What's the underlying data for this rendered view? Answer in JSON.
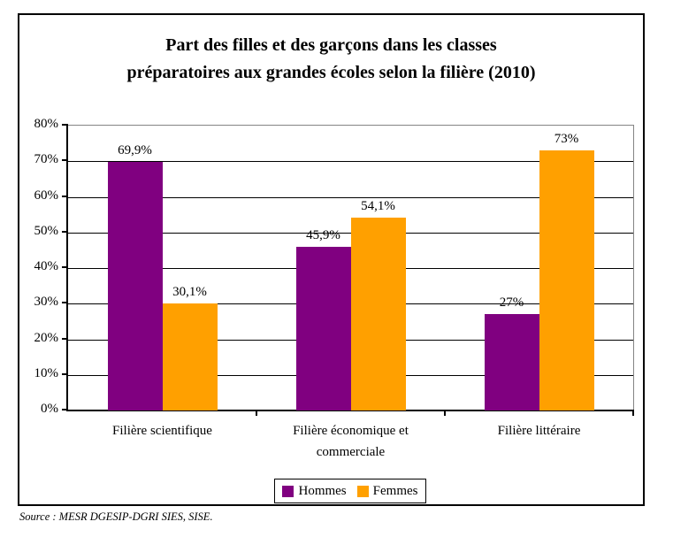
{
  "title": {
    "lines": [
      "Part des filles et des garçons dans les classes",
      "préparatoires aux grandes écoles selon la filière (2010)"
    ]
  },
  "source_note": "Source : MESR DGESIP-DGRI SIES, SISE.",
  "colors": {
    "hommes": "#800080",
    "femmes": "#FFA000",
    "axis": "#000000",
    "plot_frame": "#848484"
  },
  "legend": {
    "items": [
      {
        "label": "Hommes",
        "color": "#800080"
      },
      {
        "label": "Femmes",
        "color": "#FFA000"
      }
    ]
  },
  "chart_data": {
    "type": "bar",
    "title": "Part des filles et des garçons dans les classes préparatoires aux grandes écoles selon la filière (2010)",
    "categories": [
      "Filière scientifique",
      "Filière économique et commerciale",
      "Filière littéraire"
    ],
    "series": [
      {
        "name": "Hommes",
        "color": "#800080",
        "values": [
          69.9,
          45.9,
          27
        ],
        "data_labels": [
          "69,9%",
          "45,9%",
          "27%"
        ]
      },
      {
        "name": "Femmes",
        "color": "#FFA000",
        "values": [
          30.1,
          54.1,
          73
        ],
        "data_labels": [
          "30,1%",
          "54,1%",
          "73%"
        ]
      }
    ],
    "xlabel": "",
    "ylabel": "",
    "ylim": [
      0,
      80
    ],
    "ytick_step": 10,
    "ytick_labels": [
      "0%",
      "10%",
      "20%",
      "30%",
      "40%",
      "50%",
      "60%",
      "70%",
      "80%"
    ],
    "grid": true,
    "legend_position": "bottom"
  }
}
